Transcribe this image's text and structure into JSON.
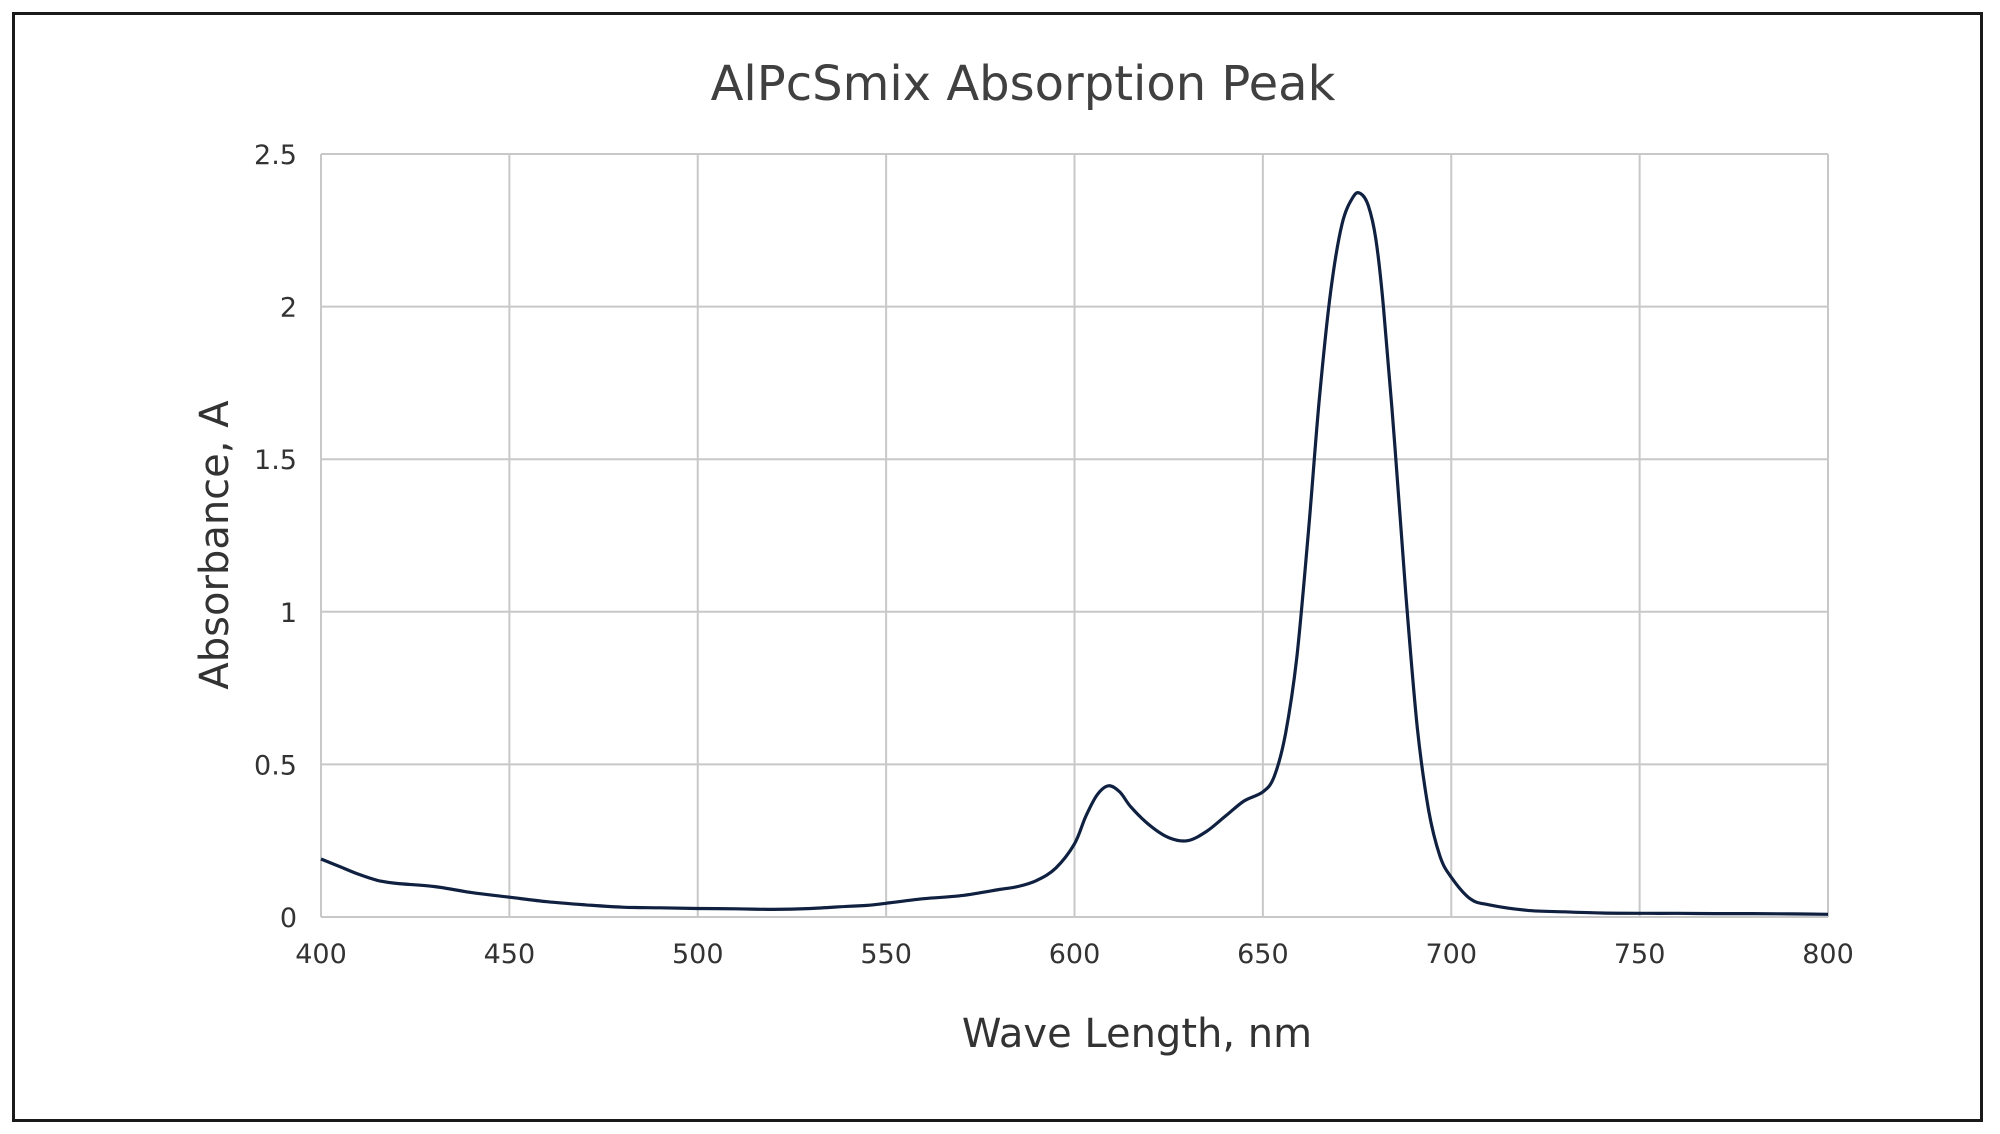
{
  "chart_data": {
    "type": "line",
    "title": "AlPcSmix Absorption Peak",
    "xlabel": "Wave Length, nm",
    "ylabel": "Absorbance, A",
    "xlim": [
      400,
      800
    ],
    "ylim": [
      0,
      2.5
    ],
    "xticks": [
      400,
      450,
      500,
      550,
      600,
      650,
      700,
      750,
      800
    ],
    "yticks": [
      0,
      0.5,
      1,
      1.5,
      2,
      2.5
    ],
    "ytick_labels": [
      "0",
      "0.5",
      "1",
      "1.5",
      "2",
      "2.5"
    ],
    "grid": true,
    "legend": "none",
    "series_color": "#0f2040",
    "series": [
      {
        "x": [
          400,
          405,
          410,
          415,
          420,
          430,
          440,
          450,
          460,
          470,
          480,
          490,
          500,
          510,
          520,
          530,
          540,
          545,
          550,
          560,
          570,
          580,
          585,
          590,
          595,
          600,
          603,
          606,
          609,
          612,
          615,
          620,
          625,
          630,
          635,
          640,
          645,
          650,
          653,
          656,
          659,
          662,
          665,
          668,
          671,
          674,
          676,
          678,
          680,
          682,
          685,
          688,
          691,
          694,
          697,
          700,
          705,
          710,
          720,
          730,
          740,
          750,
          760,
          770,
          780,
          790,
          800
        ],
        "y": [
          0.19,
          0.165,
          0.14,
          0.12,
          0.11,
          0.1,
          0.08,
          0.065,
          0.05,
          0.04,
          0.032,
          0.03,
          0.028,
          0.027,
          0.025,
          0.028,
          0.035,
          0.038,
          0.045,
          0.06,
          0.07,
          0.09,
          0.1,
          0.12,
          0.16,
          0.24,
          0.33,
          0.4,
          0.43,
          0.41,
          0.36,
          0.3,
          0.26,
          0.25,
          0.28,
          0.33,
          0.38,
          0.41,
          0.46,
          0.6,
          0.85,
          1.25,
          1.7,
          2.05,
          2.27,
          2.36,
          2.37,
          2.33,
          2.22,
          2.0,
          1.55,
          1.05,
          0.62,
          0.35,
          0.2,
          0.13,
          0.06,
          0.04,
          0.022,
          0.017,
          0.013,
          0.012,
          0.012,
          0.011,
          0.011,
          0.01,
          0.009
        ]
      }
    ]
  }
}
